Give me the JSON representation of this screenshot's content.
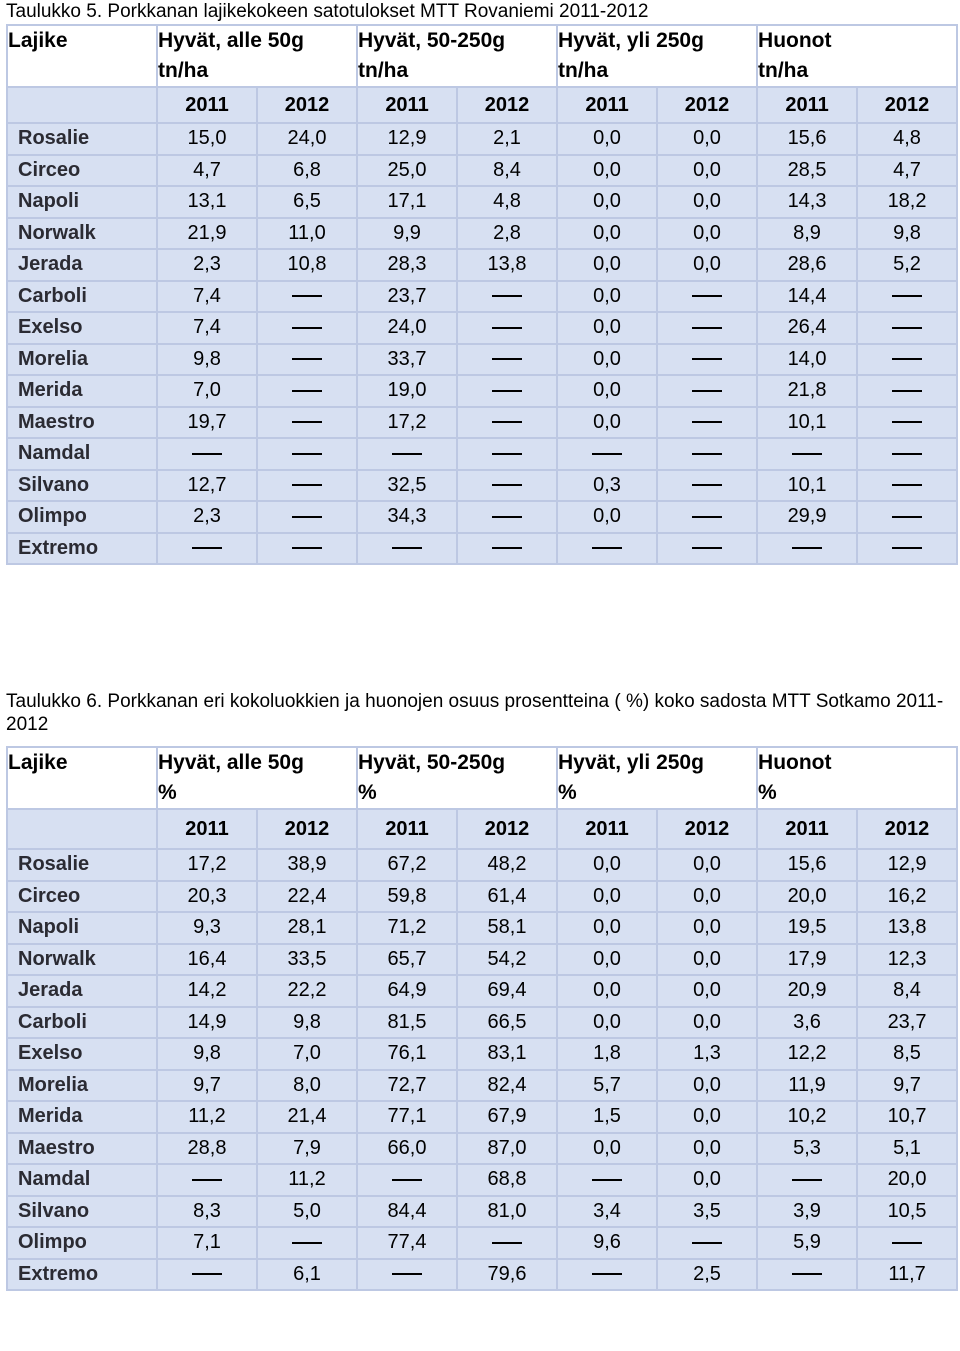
{
  "table5": {
    "caption": "Taulukko 5. Porkkanan lajikekokeen satotulokset MTT Rovaniemi 2011-2012",
    "headers": [
      {
        "line1": "Lajike",
        "line2": ""
      },
      {
        "line1": "Hyvät, alle 50g",
        "line2": "tn/ha"
      },
      {
        "line1": "Hyvät,   50-250g",
        "line2": "tn/ha"
      },
      {
        "line1": "Hyvät,  yli  250g",
        "line2": "tn/ha"
      },
      {
        "line1": "Huonot",
        "line2": "tn/ha"
      }
    ],
    "years": [
      "2011",
      "2012",
      "2011",
      "2012",
      "2011",
      "2012",
      "2011",
      "2012"
    ],
    "rows": [
      {
        "name": "Rosalie",
        "values": [
          "15,0",
          "24,0",
          "12,9",
          "2,1",
          "0,0",
          "0,0",
          "15,6",
          "4,8"
        ]
      },
      {
        "name": "Circeo",
        "values": [
          "4,7",
          "6,8",
          "25,0",
          "8,4",
          "0,0",
          "0,0",
          "28,5",
          "4,7"
        ]
      },
      {
        "name": "Napoli",
        "values": [
          "13,1",
          "6,5",
          "17,1",
          "4,8",
          "0,0",
          "0,0",
          "14,3",
          "18,2"
        ]
      },
      {
        "name": "Norwalk",
        "values": [
          "21,9",
          "11,0",
          "9,9",
          "2,8",
          "0,0",
          "0,0",
          "8,9",
          "9,8"
        ]
      },
      {
        "name": "Jerada",
        "values": [
          "2,3",
          "10,8",
          "28,3",
          "13,8",
          "0,0",
          "0,0",
          "28,6",
          "5,2"
        ]
      },
      {
        "name": "Carboli",
        "values": [
          "7,4",
          "–",
          "23,7",
          "–",
          "0,0",
          "–",
          "14,4",
          "–"
        ]
      },
      {
        "name": "Exelso",
        "values": [
          "7,4",
          "–",
          "24,0",
          "–",
          "0,0",
          "–",
          "26,4",
          "–"
        ]
      },
      {
        "name": "Morelia",
        "values": [
          "9,8",
          "–",
          "33,7",
          "–",
          "0,0",
          "–",
          "14,0",
          "–"
        ]
      },
      {
        "name": "Merida",
        "values": [
          "7,0",
          "–",
          "19,0",
          "–",
          "0,0",
          "–",
          "21,8",
          "–"
        ]
      },
      {
        "name": "Maestro",
        "values": [
          "19,7",
          "–",
          "17,2",
          "–",
          "0,0",
          "–",
          "10,1",
          "–"
        ]
      },
      {
        "name": "Namdal",
        "values": [
          "–",
          "–",
          "–",
          "–",
          "–",
          "–",
          "–",
          "–"
        ]
      },
      {
        "name": "Silvano",
        "values": [
          "12,7",
          "–",
          "32,5",
          "–",
          "0,3",
          "–",
          "10,1",
          "–"
        ]
      },
      {
        "name": "Olimpo",
        "values": [
          "2,3",
          "–",
          "34,3",
          "–",
          "0,0",
          "–",
          "29,9",
          "–"
        ]
      },
      {
        "name": "Extremo",
        "values": [
          "–",
          "–",
          "–",
          "–",
          "–",
          "–",
          "–",
          "–"
        ]
      }
    ]
  },
  "table6": {
    "caption": "Taulukko 6. Porkkanan eri kokoluokkien ja huonojen osuus prosentteina ( %) koko sadosta MTT Sotkamo 2011-2012",
    "headers": [
      {
        "line1": "Lajike",
        "line2": ""
      },
      {
        "line1": "Hyvät, alle 50g",
        "line2": "%"
      },
      {
        "line1": "Hyvät, 50-250g",
        "line2": "%"
      },
      {
        "line1": "Hyvät, yli 250g",
        "line2": "%"
      },
      {
        "line1": "Huonot",
        "line2": "%"
      }
    ],
    "years": [
      "2011",
      "2012",
      "2011",
      "2012",
      "2011",
      "2012",
      "2011",
      "2012"
    ],
    "rows": [
      {
        "name": "Rosalie",
        "values": [
          "17,2",
          "38,9",
          "67,2",
          "48,2",
          "0,0",
          "0,0",
          "15,6",
          "12,9"
        ]
      },
      {
        "name": "Circeo",
        "values": [
          "20,3",
          "22,4",
          "59,8",
          "61,4",
          "0,0",
          "0,0",
          "20,0",
          "16,2"
        ]
      },
      {
        "name": "Napoli",
        "values": [
          "9,3",
          "28,1",
          "71,2",
          "58,1",
          "0,0",
          "0,0",
          "19,5",
          "13,8"
        ]
      },
      {
        "name": "Norwalk",
        "values": [
          "16,4",
          "33,5",
          "65,7",
          "54,2",
          "0,0",
          "0,0",
          "17,9",
          "12,3"
        ]
      },
      {
        "name": "Jerada",
        "values": [
          "14,2",
          "22,2",
          "64,9",
          "69,4",
          "0,0",
          "0,0",
          "20,9",
          "8,4"
        ]
      },
      {
        "name": "Carboli",
        "values": [
          "14,9",
          "9,8",
          "81,5",
          "66,5",
          "0,0",
          "0,0",
          "3,6",
          "23,7"
        ]
      },
      {
        "name": "Exelso",
        "values": [
          "9,8",
          "7,0",
          "76,1",
          "83,1",
          "1,8",
          "1,3",
          "12,2",
          "8,5"
        ]
      },
      {
        "name": "Morelia",
        "values": [
          "9,7",
          "8,0",
          "72,7",
          "82,4",
          "5,7",
          "0,0",
          "11,9",
          "9,7"
        ]
      },
      {
        "name": "Merida",
        "values": [
          "11,2",
          "21,4",
          "77,1",
          "67,9",
          "1,5",
          "0,0",
          "10,2",
          "10,7"
        ]
      },
      {
        "name": "Maestro",
        "values": [
          "28,8",
          "7,9",
          "66,0",
          "87,0",
          "0,0",
          "0,0",
          "5,3",
          "5,1"
        ]
      },
      {
        "name": "Namdal",
        "values": [
          "–",
          "11,2",
          "–",
          "68,8",
          "–",
          "0,0",
          "–",
          "20,0"
        ]
      },
      {
        "name": "Silvano",
        "values": [
          "8,3",
          "5,0",
          "84,4",
          "81,0",
          "3,4",
          "3,5",
          "3,9",
          "10,5"
        ]
      },
      {
        "name": "Olimpo",
        "values": [
          "7,1",
          "–",
          "77,4",
          "–",
          "9,6",
          "–",
          "5,9",
          "–"
        ]
      },
      {
        "name": "Extremo",
        "values": [
          "–",
          "6,1",
          "–",
          "79,6",
          "–",
          "2,5",
          "–",
          "11,7"
        ]
      }
    ]
  }
}
